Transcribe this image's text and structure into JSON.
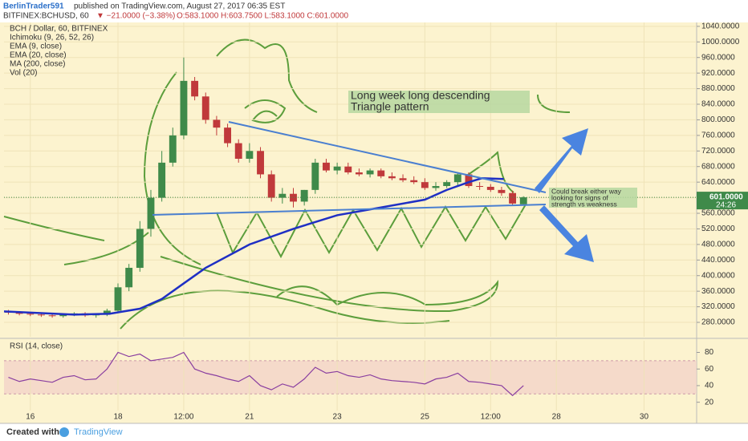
{
  "header": {
    "author": "BerlinTrader591",
    "published": "published on TradingView.com, August 27, 2017 06:35 EST",
    "symbol": "BITFINEX:BCHUSD, 60",
    "change": "▼ −21.0000 (−3.38%)",
    "ohlc": "O:583.1000 H:603.7500 L:583.1000 C:601.0000"
  },
  "chart_data": [
    {
      "type": "candlestick",
      "title": "BCH / Dollar, 60, BITFINEX",
      "studies": [
        "Ichimoku (9, 26, 52, 26)",
        "EMA (9, close)",
        "EMA (20, close)",
        "MA (200, close)",
        "Vol (20)"
      ],
      "x": [
        15.5,
        15.75,
        16,
        16.25,
        16.5,
        16.75,
        17,
        17.25,
        17.5,
        17.75,
        18,
        18.25,
        18.5,
        18.75,
        19,
        19.25,
        19.5,
        19.75,
        20,
        20.25,
        20.5,
        20.75,
        21,
        21.25,
        21.5,
        21.75,
        22,
        22.25,
        22.5,
        22.75,
        23,
        23.25,
        23.5,
        23.75,
        24,
        24.25,
        24.5,
        24.75,
        25,
        25.25,
        25.5,
        25.75,
        26,
        26.25,
        26.5,
        26.75,
        27,
        27.25
      ],
      "open": [
        308,
        305,
        302,
        300,
        298,
        296,
        300,
        303,
        298,
        300,
        310,
        370,
        420,
        520,
        600,
        690,
        760,
        900,
        860,
        800,
        780,
        740,
        700,
        720,
        660,
        600,
        610,
        590,
        620,
        690,
        670,
        680,
        665,
        660,
        670,
        655,
        650,
        645,
        640,
        625,
        630,
        640,
        660,
        630,
        628,
        620,
        612,
        583.1
      ],
      "high": [
        312,
        309,
        306,
        304,
        302,
        303,
        306,
        306,
        303,
        315,
        380,
        430,
        540,
        620,
        720,
        780,
        960,
        910,
        870,
        810,
        790,
        750,
        740,
        730,
        670,
        625,
        625,
        620,
        700,
        700,
        690,
        690,
        675,
        675,
        675,
        665,
        660,
        655,
        650,
        640,
        645,
        665,
        665,
        640,
        635,
        628,
        618,
        603.75
      ],
      "low": [
        300,
        298,
        296,
        294,
        292,
        292,
        296,
        294,
        292,
        296,
        305,
        360,
        410,
        500,
        590,
        680,
        750,
        850,
        790,
        760,
        730,
        690,
        690,
        650,
        590,
        585,
        575,
        580,
        610,
        665,
        660,
        660,
        655,
        652,
        650,
        645,
        640,
        635,
        620,
        618,
        625,
        632,
        625,
        620,
        615,
        605,
        580,
        583.1
      ],
      "close": [
        305,
        302,
        300,
        298,
        296,
        300,
        303,
        298,
        300,
        310,
        370,
        420,
        520,
        600,
        690,
        760,
        900,
        860,
        800,
        780,
        740,
        700,
        720,
        660,
        600,
        610,
        590,
        620,
        690,
        670,
        680,
        665,
        660,
        670,
        655,
        650,
        645,
        640,
        625,
        630,
        640,
        660,
        630,
        628,
        620,
        612,
        585,
        601
      ],
      "up_color": "#3f8a4a",
      "down_color": "#c0393b",
      "series": [
        {
          "color": "#1f2fc4",
          "x": [
            15.4,
            16,
            17,
            17.8,
            18.5,
            19,
            19.5,
            20,
            21,
            22,
            23,
            24,
            25,
            25.5,
            26,
            26.3,
            26.8
          ],
          "values": [
            308,
            305,
            300,
            302,
            315,
            340,
            380,
            420,
            480,
            520,
            555,
            575,
            595,
            620,
            640,
            650,
            648
          ]
        }
      ],
      "xlim": [
        15.4,
        31.2
      ],
      "ylim": [
        243,
        1050
      ],
      "yticks": [
        {
          "value": 280,
          "label": "280.0000"
        },
        {
          "value": 320,
          "label": "320.0000"
        },
        {
          "value": 360,
          "label": "360.0000"
        },
        {
          "value": 400,
          "label": "400.0000"
        },
        {
          "value": 440,
          "label": "440.0000"
        },
        {
          "value": 480,
          "label": "480.0000"
        },
        {
          "value": 520,
          "label": "520.0000"
        },
        {
          "value": 560,
          "label": "560.0000"
        },
        {
          "value": 600,
          "label": "600.0000"
        },
        {
          "value": 640,
          "label": "640.0000"
        },
        {
          "value": 680,
          "label": "680.0000"
        },
        {
          "value": 720,
          "label": "720.0000"
        },
        {
          "value": 760,
          "label": "760.0000"
        },
        {
          "value": 800,
          "label": "800.0000"
        },
        {
          "value": 840,
          "label": "840.0000"
        },
        {
          "value": 880,
          "label": "880.0000"
        },
        {
          "value": 920,
          "label": "920.0000"
        },
        {
          "value": 960,
          "label": "960.0000"
        },
        {
          "value": 1000,
          "label": "1000.0000"
        },
        {
          "value": 1040,
          "label": "1040.0000"
        }
      ],
      "last_price": {
        "value": 601,
        "label": "601.0000"
      },
      "countdown": "24:26",
      "annotations": [
        [
          "Long week long descending",
          "Triangle pattern"
        ],
        [
          "Could break either way",
          "looking for signs of",
          "strength vs weakness"
        ]
      ]
    },
    {
      "type": "line",
      "title": "RSI (14, close)",
      "color": "#8a3fa0",
      "x": [
        15.5,
        15.75,
        16,
        16.25,
        16.5,
        16.75,
        17,
        17.25,
        17.5,
        17.75,
        18,
        18.25,
        18.5,
        18.75,
        19,
        19.25,
        19.5,
        19.75,
        20,
        20.25,
        20.5,
        20.75,
        21,
        21.25,
        21.5,
        21.75,
        22,
        22.25,
        22.5,
        22.75,
        23,
        23.25,
        23.5,
        23.75,
        24,
        24.25,
        24.5,
        24.75,
        25,
        25.25,
        25.5,
        25.75,
        26,
        26.25,
        26.5,
        26.75,
        27,
        27.25
      ],
      "values": [
        50,
        45,
        48,
        46,
        44,
        50,
        52,
        47,
        48,
        60,
        80,
        75,
        78,
        70,
        72,
        74,
        80,
        60,
        55,
        52,
        48,
        45,
        52,
        40,
        35,
        42,
        38,
        48,
        62,
        55,
        57,
        52,
        50,
        53,
        48,
        46,
        45,
        44,
        42,
        48,
        50,
        55,
        45,
        44,
        42,
        40,
        28,
        40
      ],
      "band": [
        30,
        70
      ],
      "xlim": [
        15.4,
        31.2
      ],
      "ylim": [
        10,
        94
      ],
      "yticks": [
        20,
        40,
        60,
        80
      ],
      "xticks": [
        16,
        18,
        {
          "value": 19.5,
          "label": "12:00"
        },
        21,
        23,
        25,
        {
          "value": 26.5,
          "label": "12:00"
        },
        28,
        30
      ]
    }
  ],
  "footer": {
    "created": "Created with",
    "brand": "TradingView"
  }
}
